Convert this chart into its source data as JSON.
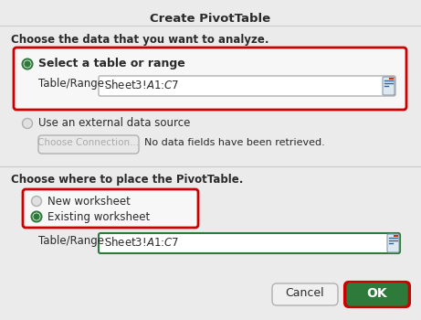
{
  "title": "Create PivotTable",
  "bg_color": "#ebebeb",
  "section1_header": "Choose the data that you want to analyze.",
  "radio1_label": "Select a table or range",
  "table_range_label": "Table/Range:",
  "table_range_value": "Sheet3!$A$1:$C$7",
  "radio2_label": "Use an external data source",
  "choose_connection_label": "Choose Connection...",
  "no_data_label": "No data fields have been retrieved.",
  "section2_header": "Choose where to place the PivotTable.",
  "radio3_label": "New worksheet",
  "radio4_label": "Existing worksheet",
  "table_range2_value": "Sheet3!$A$1:$C$7",
  "cancel_label": "Cancel",
  "ok_label": "OK",
  "red_border": "#cc0000",
  "green_color": "#2d7a3a",
  "ok_bg": "#2d7a3a",
  "ok_text": "#ffffff",
  "input_bg": "#ffffff",
  "input_border": "#b0b0b0",
  "green_input_bg": "#ffffff",
  "green_input_border": "#2d7a3a",
  "separator_color": "#c8c8c8",
  "title_sep_color": "#cccccc",
  "radio_active_color": "#2d7a3a",
  "radio_inactive_fill": "#e0e0e0",
  "radio_inactive_border": "#b0b0b0",
  "button_bg": "#f0f0f0",
  "button_border": "#b0b0b0",
  "text_color": "#2a2a2a",
  "disabled_text_color": "#aaaaaa",
  "red_box_bg": "#f7f7f7",
  "section_box_bg": "#f7f7f7"
}
